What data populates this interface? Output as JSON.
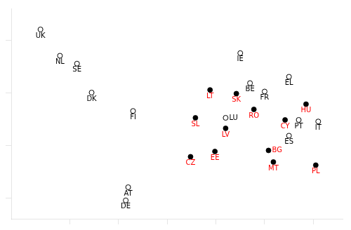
{
  "chart_data": {
    "type": "scatter",
    "series": [
      {
        "marker": "open_circle",
        "color": "black",
        "labels": [
          "UK",
          "NL",
          "SE",
          "IE",
          "DK",
          "EL",
          "BE",
          "FR",
          "FI",
          "LU",
          "PT",
          "ES",
          "IT",
          "AT",
          "DE"
        ],
        "x": [
          -2.6,
          -2.2,
          -1.85,
          1.5,
          -1.55,
          2.5,
          1.7,
          2.0,
          -0.7,
          1.2,
          2.7,
          2.5,
          3.1,
          -0.8,
          -0.85
        ],
        "values": [
          2.2,
          1.7,
          1.55,
          1.75,
          1.0,
          1.3,
          1.18,
          1.02,
          0.65,
          0.52,
          0.48,
          0.18,
          0.45,
          -0.8,
          -1.05
        ]
      },
      {
        "marker": "filled_circle",
        "color": "red",
        "labels": [
          "LT",
          "SK",
          "SL",
          "RO",
          "LV",
          "EE",
          "BG",
          "MT",
          "CZ",
          "HU",
          "CY",
          "PL"
        ],
        "x": [
          0.88,
          1.42,
          0.58,
          1.78,
          1.2,
          0.98,
          2.08,
          2.18,
          0.48,
          2.85,
          2.42,
          3.05
        ],
        "values": [
          1.05,
          0.98,
          0.52,
          0.68,
          0.32,
          -0.12,
          -0.1,
          -0.32,
          -0.22,
          0.78,
          0.48,
          -0.38
        ]
      }
    ],
    "xlim": [
      -3.2,
      3.6
    ],
    "ylim": [
      -1.4,
      2.6
    ],
    "xticks": [
      -2,
      -1,
      0,
      1,
      2,
      3
    ],
    "yticks": [
      -1,
      0,
      1,
      2
    ],
    "grid": false,
    "tick_labels": false
  }
}
